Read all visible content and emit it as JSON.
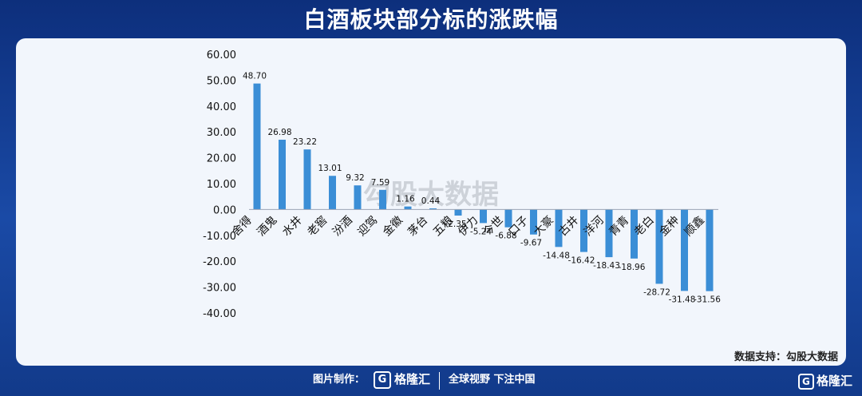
{
  "header": {
    "title": "白酒板块部分标的涨跌幅"
  },
  "watermark": "勾股大数据",
  "source": "数据支持：勾股大数据",
  "footer": {
    "credit_label": "图片制作：",
    "logo_text": "格隆汇",
    "slogan": "全球视野 下注中国"
  },
  "corner_logo": "格隆汇",
  "colors": {
    "bar": "#3b8ed6",
    "panel": "#f2f6fc",
    "header_bg": "#123a8a"
  },
  "chart_data": {
    "type": "bar",
    "title": "白酒板块部分标的涨跌幅",
    "categories": [
      "舍得",
      "酒鬼",
      "水井",
      "老窖",
      "汾酒",
      "迎驾",
      "金徽",
      "茅台",
      "五粮",
      "伊力",
      "今世",
      "口子",
      "大豪",
      "古井",
      "洋河",
      "青青",
      "老白",
      "金种",
      "顺鑫"
    ],
    "values": [
      48.7,
      26.98,
      23.22,
      13.01,
      9.32,
      7.59,
      1.16,
      0.44,
      -2.35,
      -5.24,
      -6.88,
      -9.67,
      -14.48,
      -16.42,
      -18.43,
      -18.96,
      -28.72,
      -31.48,
      -31.56
    ],
    "value_labels": [
      "48.70",
      "26.98",
      "23.22",
      "13.01",
      "9.32",
      "7.59",
      "1.16",
      "0.44",
      "-2.35",
      "-5.24",
      "-6.88",
      "-9.67",
      "-14.48",
      "-16.42",
      "-18.43",
      "-18.96",
      "-28.72",
      "-31.48",
      "-31.56"
    ],
    "yticks": [
      "60.00",
      "50.00",
      "40.00",
      "30.00",
      "20.00",
      "10.00",
      "0.00",
      "-10.00",
      "-20.00",
      "-30.00",
      "-40.00"
    ],
    "ylim": [
      -40,
      60
    ],
    "grid": false,
    "legend": "none"
  }
}
